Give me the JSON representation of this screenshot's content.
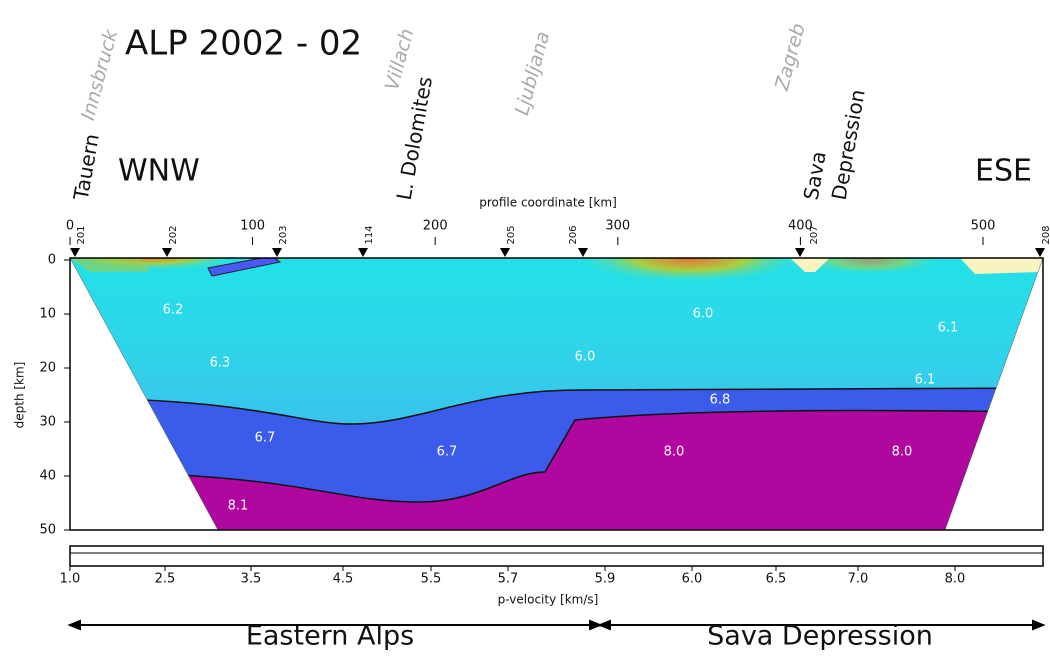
{
  "header": {
    "title": "ALP 2002 - 02",
    "west": "WNW",
    "east": "ESE"
  },
  "cities": [
    "Innsbruck",
    "Villach",
    "Ljubljana",
    "Zagreb"
  ],
  "places": [
    "Tauern",
    "L. Dolomites",
    "Sava",
    "Depression"
  ],
  "stations": [
    "201",
    "202",
    "203",
    "114",
    "205",
    "206",
    "207",
    "208"
  ],
  "x_axis": {
    "label": "profile coordinate [km]",
    "ticks": [
      0,
      100,
      200,
      300,
      400,
      500
    ]
  },
  "y_axis": {
    "label": "depth [km]",
    "ticks": [
      0,
      10,
      20,
      30,
      40,
      50
    ]
  },
  "velocities": [
    "6.2",
    "6.3",
    "6.0",
    "6.0",
    "6.1",
    "6.1",
    "6.8",
    "6.7",
    "6.7",
    "8.0",
    "8.0",
    "8.1"
  ],
  "colorbar": {
    "label": "p-velocity [km/s]",
    "ticks": [
      "1.0",
      "2.5",
      "3.5",
      "4.5",
      "5.5",
      "5.7",
      "5.9",
      "6.0",
      "6.5",
      "7.0",
      "8.0"
    ]
  },
  "regions": [
    "Eastern Alps",
    "Sava Depression"
  ]
}
